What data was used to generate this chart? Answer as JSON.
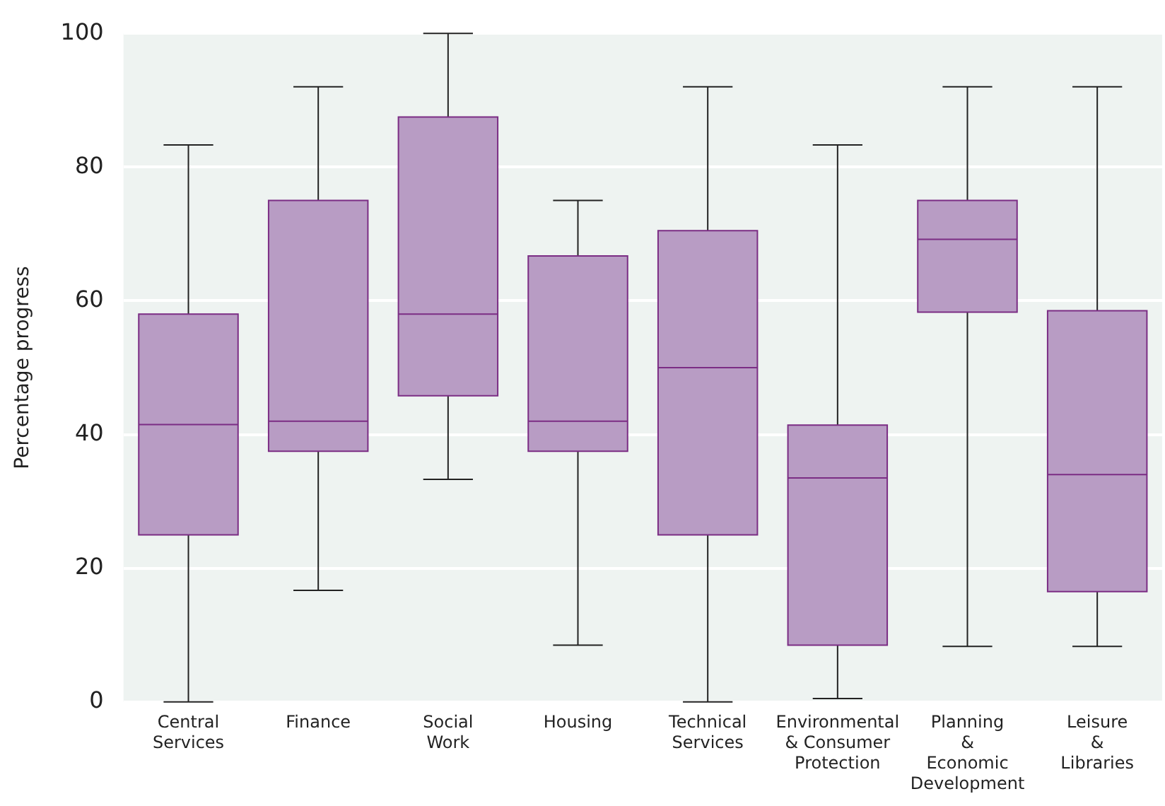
{
  "chart_data": {
    "type": "box",
    "ylabel": "Percentage progress",
    "categories": [
      "Central\nServices",
      "Finance",
      "Social\nWork",
      "Housing",
      "Technical\nServices",
      "Environmental\n& Consumer\nProtection",
      "Planning\n&\nEconomic\nDevelopment",
      "Leisure\n&\nLibraries"
    ],
    "color": "#b89cc4",
    "boxes": [
      {
        "low": 0,
        "q1": 25,
        "median": 41.5,
        "q3": 58,
        "high": 83.3
      },
      {
        "low": 16.7,
        "q1": 37.5,
        "median": 42,
        "q3": 75,
        "high": 92
      },
      {
        "low": 33.3,
        "q1": 45.8,
        "median": 58,
        "q3": 87.5,
        "high": 100
      },
      {
        "low": 8.5,
        "q1": 37.5,
        "median": 42,
        "q3": 66.7,
        "high": 75
      },
      {
        "low": 0,
        "q1": 25,
        "median": 50,
        "q3": 70.5,
        "high": 92
      },
      {
        "low": 0.5,
        "q1": 8.5,
        "median": 33.5,
        "q3": 41.4,
        "high": 83.3
      },
      {
        "low": 8.3,
        "q1": 58.3,
        "median": 69.2,
        "q3": 75,
        "high": 92
      },
      {
        "low": 8.3,
        "q1": 16.5,
        "median": 34,
        "q3": 58.5,
        "high": 92
      }
    ],
    "ylim": [
      0,
      100
    ],
    "yticks": [
      0,
      20,
      40,
      60,
      80,
      100
    ],
    "grid": "y"
  }
}
